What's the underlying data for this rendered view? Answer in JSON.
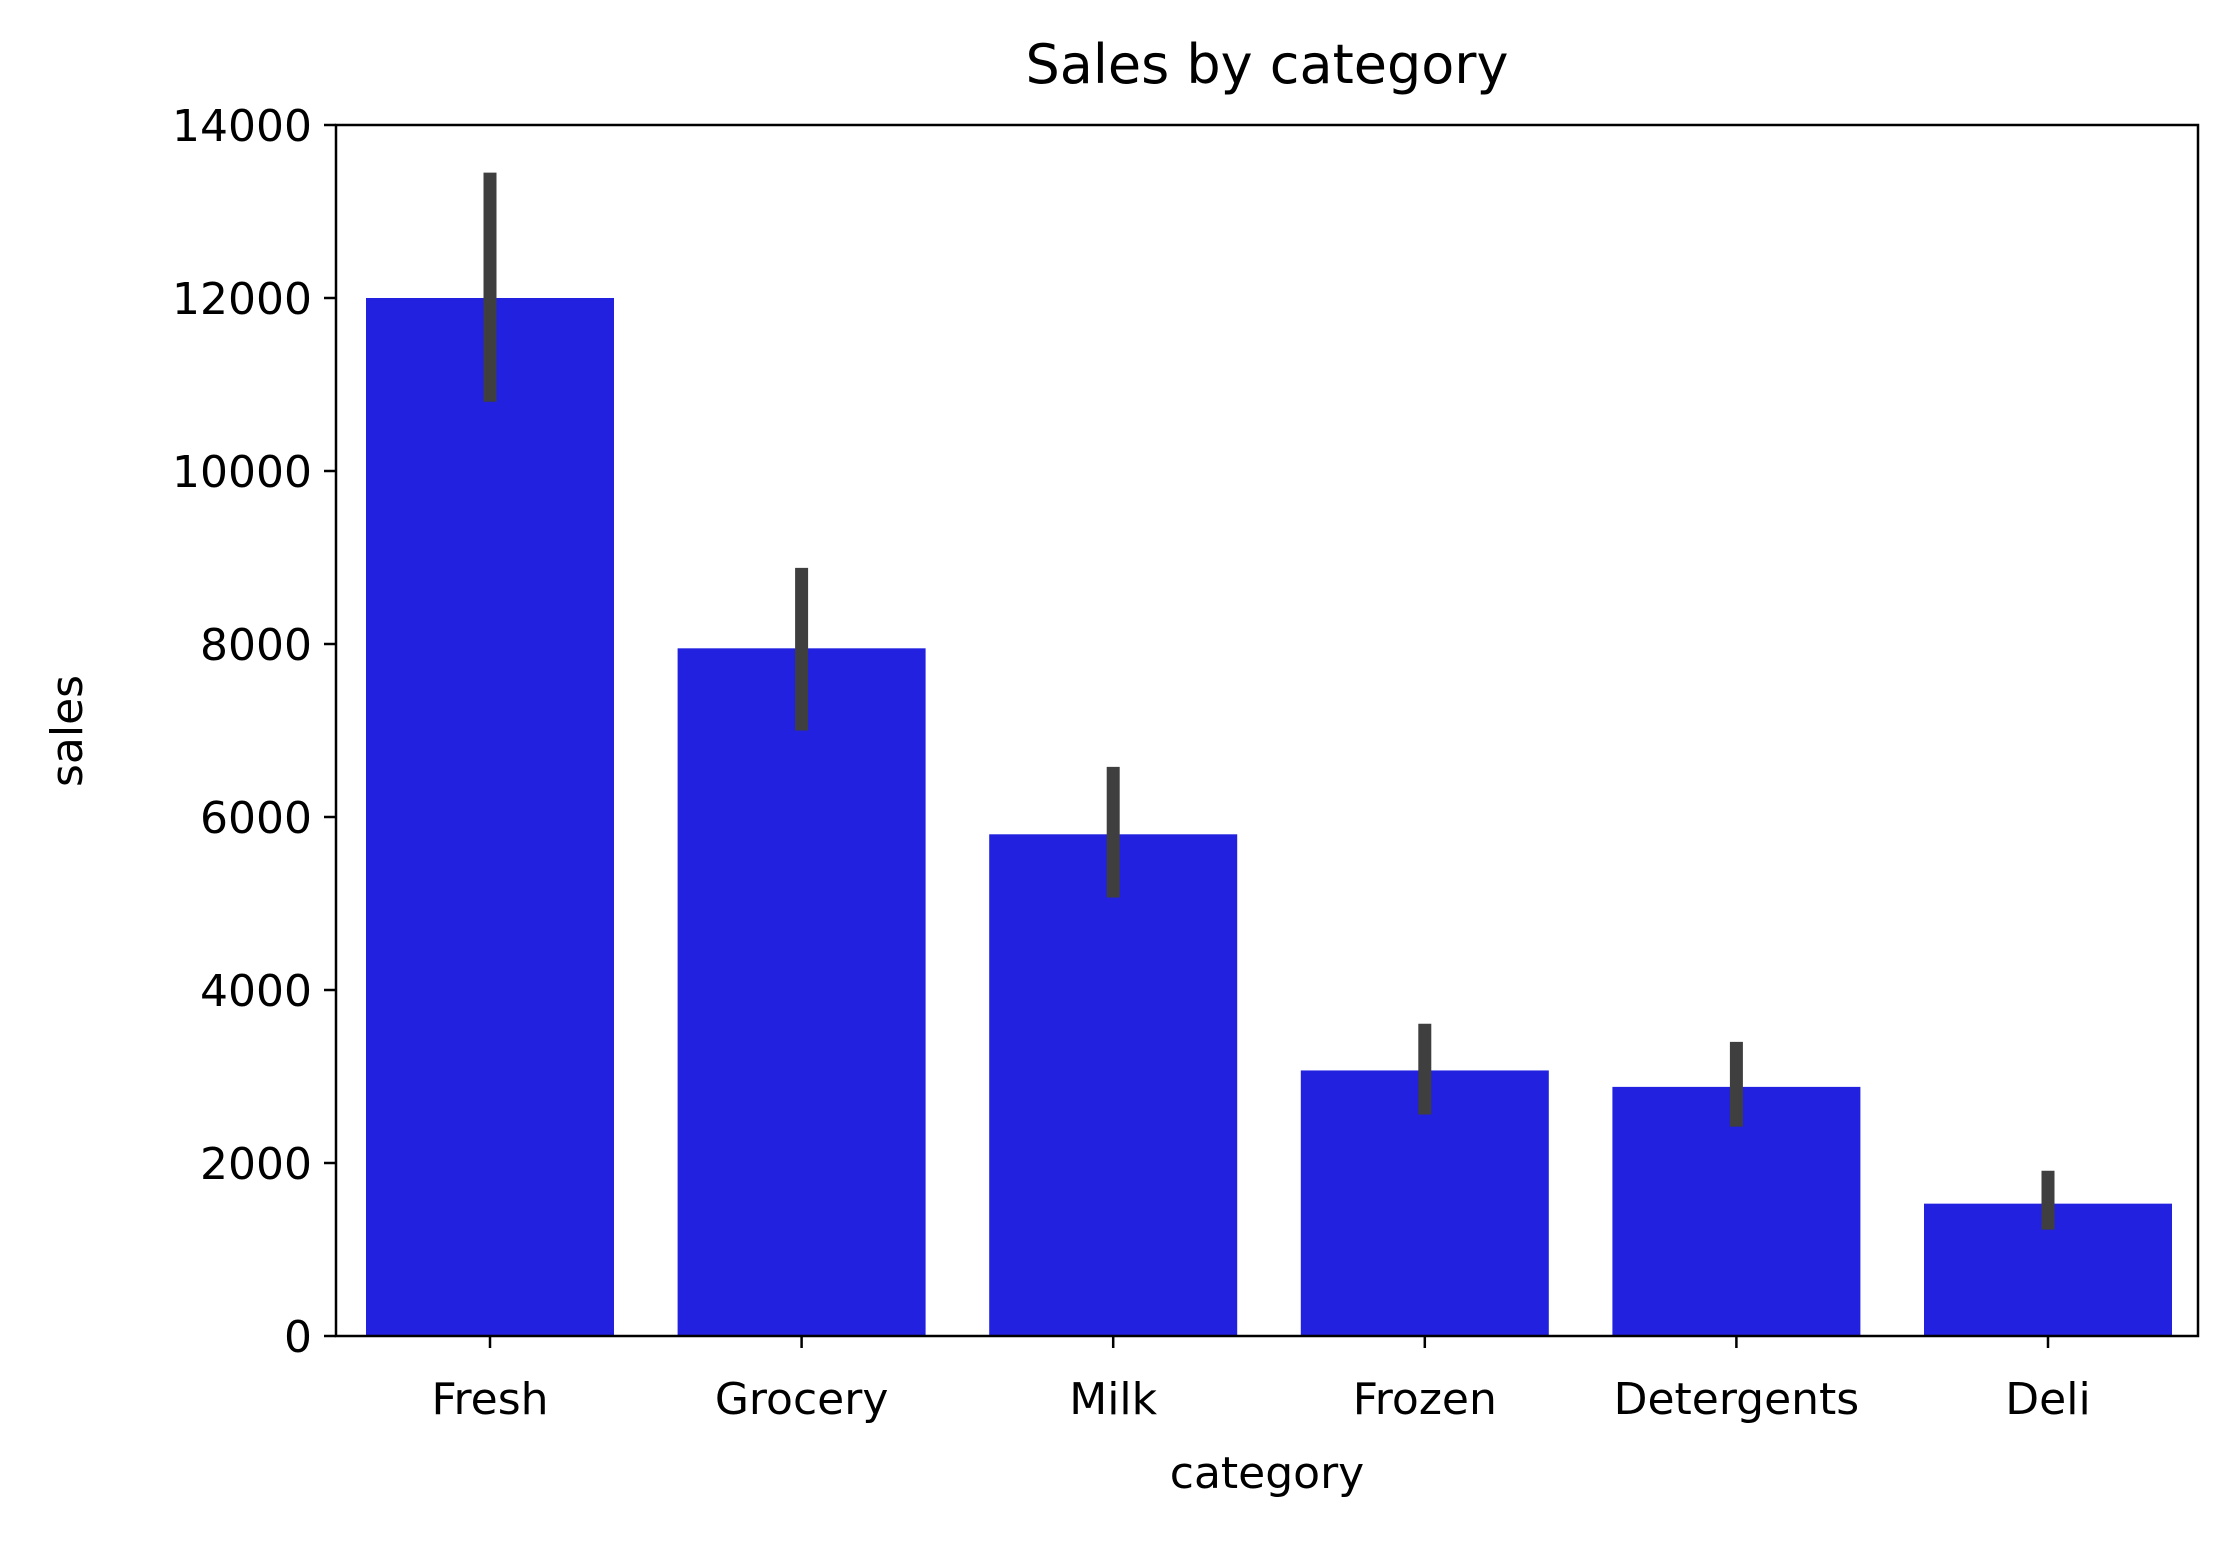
{
  "chart_data": {
    "type": "bar",
    "title": "Sales by category",
    "xlabel": "category",
    "ylabel": "sales",
    "categories": [
      "Fresh",
      "Grocery",
      "Milk",
      "Frozen",
      "Detergents",
      "Deli"
    ],
    "values": [
      12000,
      7950,
      5800,
      3070,
      2880,
      1530
    ],
    "error_bars": [
      [
        10800,
        13450
      ],
      [
        7000,
        8880
      ],
      [
        5070,
        6580
      ],
      [
        2560,
        3610
      ],
      [
        2420,
        3400
      ],
      [
        1230,
        1910
      ]
    ],
    "ylim": [
      0,
      14000
    ],
    "yticks": [
      0,
      2000,
      4000,
      6000,
      8000,
      10000,
      12000,
      14000
    ],
    "grid": false,
    "colors": {
      "bar": "#2121DF",
      "error_bar": "#3F3F3F",
      "axis": "#000000"
    }
  }
}
